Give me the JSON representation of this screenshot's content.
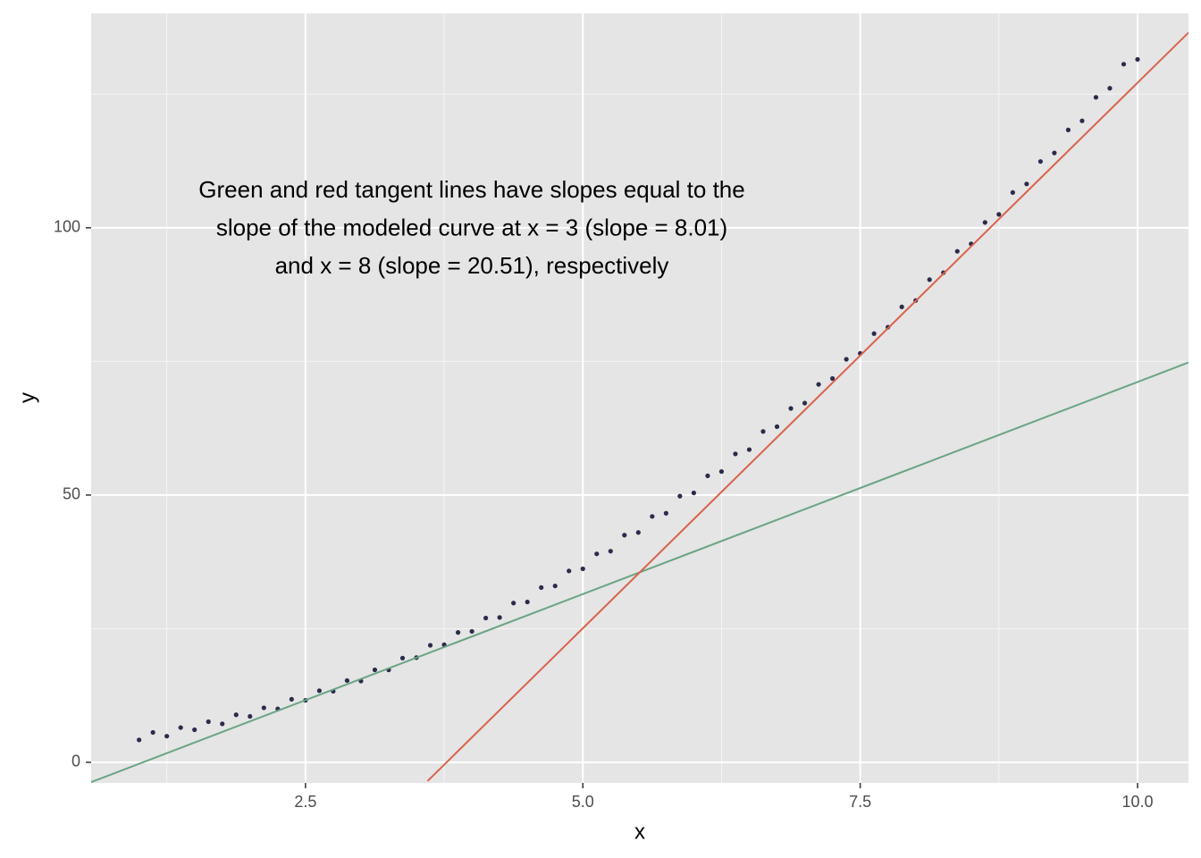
{
  "chart_data": {
    "type": "scatter",
    "x_label": "x",
    "y_label": "y",
    "annotation": [
      "Green and red tangent lines have slopes equal to the",
      "slope of the modeled curve at x = 3 (slope = 8.01)",
      "and x = 8 (slope = 20.51), respectively"
    ],
    "xlim": [
      0.568,
      10.459
    ],
    "ylim": [
      -3.85,
      140.1
    ],
    "xticks": [
      2.5,
      {
        "value": 5,
        "label": "5.0"
      },
      7.5,
      {
        "value": 10,
        "label": "10.0"
      }
    ],
    "yticks": [
      0,
      50,
      100
    ],
    "minor_xticks": [
      1.25,
      3.75,
      6.25,
      8.75
    ],
    "minor_yticks": [
      25,
      75,
      125
    ],
    "grid": true,
    "point_color": "#2b2b4b",
    "x": [
      1.0,
      1.125,
      1.25,
      1.375,
      1.5,
      1.625,
      1.75,
      1.875,
      2.0,
      2.125,
      2.25,
      2.375,
      2.5,
      2.625,
      2.75,
      2.875,
      3.0,
      3.125,
      3.25,
      3.375,
      3.5,
      3.625,
      3.75,
      3.875,
      4.0,
      4.125,
      4.25,
      4.375,
      4.5,
      4.625,
      4.75,
      4.875,
      5.0,
      5.125,
      5.25,
      5.375,
      5.5,
      5.625,
      5.75,
      5.875,
      6.0,
      6.125,
      6.25,
      6.375,
      6.5,
      6.625,
      6.75,
      6.875,
      7.0,
      7.125,
      7.25,
      7.375,
      7.5,
      7.625,
      7.75,
      7.875,
      8.0,
      8.125,
      8.25,
      8.375,
      8.5,
      8.625,
      8.75,
      8.875,
      9.0,
      9.125,
      9.25,
      9.375,
      9.5,
      9.625,
      9.75,
      9.875,
      10.0
    ],
    "values": [
      4.2,
      5.6,
      4.9,
      6.5,
      6.1,
      7.6,
      7.2,
      8.9,
      8.6,
      10.2,
      10.0,
      11.8,
      11.6,
      13.4,
      13.3,
      15.3,
      15.2,
      17.3,
      17.3,
      19.5,
      19.6,
      21.9,
      22.0,
      24.3,
      24.5,
      27.0,
      27.1,
      29.8,
      30.0,
      32.7,
      33.0,
      35.8,
      36.2,
      39.0,
      39.5,
      42.5,
      43.0,
      46.0,
      46.6,
      49.8,
      50.4,
      53.6,
      54.4,
      57.7,
      58.5,
      61.9,
      62.8,
      66.2,
      67.2,
      70.7,
      71.8,
      75.4,
      76.5,
      80.2,
      81.4,
      85.2,
      86.4,
      90.3,
      91.6,
      95.6,
      97.0,
      101.0,
      102.5,
      106.6,
      108.2,
      112.4,
      114.0,
      118.3,
      120.0,
      124.4,
      126.1,
      130.6,
      131.5
    ],
    "lines": [
      {
        "color": "#6aa484",
        "x": [
          0.568,
          10.459
        ],
        "values": [
          -3.7,
          74.8
        ]
      },
      {
        "color": "#d9634c",
        "x": [
          3.6,
          10.459
        ],
        "values": [
          -3.5,
          136.5
        ]
      }
    ]
  }
}
